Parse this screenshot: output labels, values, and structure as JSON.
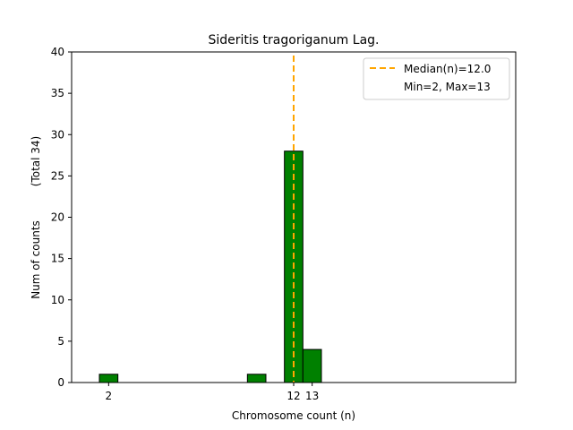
{
  "chart_data": {
    "type": "bar",
    "title": "Sideritis tragoriganum Lag.",
    "xlabel": "Chromosome count (n)",
    "ylabel": "Num of counts",
    "ylabel_total": "(Total 34)",
    "xlim": [
      0,
      24
    ],
    "ylim": [
      0,
      40
    ],
    "yticks": [
      0,
      5,
      10,
      15,
      20,
      25,
      30,
      35,
      40
    ],
    "xticks": [
      2,
      12,
      13
    ],
    "bars": [
      {
        "x": 2,
        "value": 1
      },
      {
        "x": 10,
        "value": 1
      },
      {
        "x": 12,
        "value": 28
      },
      {
        "x": 13,
        "value": 4
      }
    ],
    "bar_color": "#008000",
    "median": 12.0,
    "median_color": "#ffa500",
    "legend": {
      "placement": "top-right",
      "entries": [
        "Median(n)=12.0",
        "Min=2, Max=13"
      ]
    },
    "grid": false
  }
}
